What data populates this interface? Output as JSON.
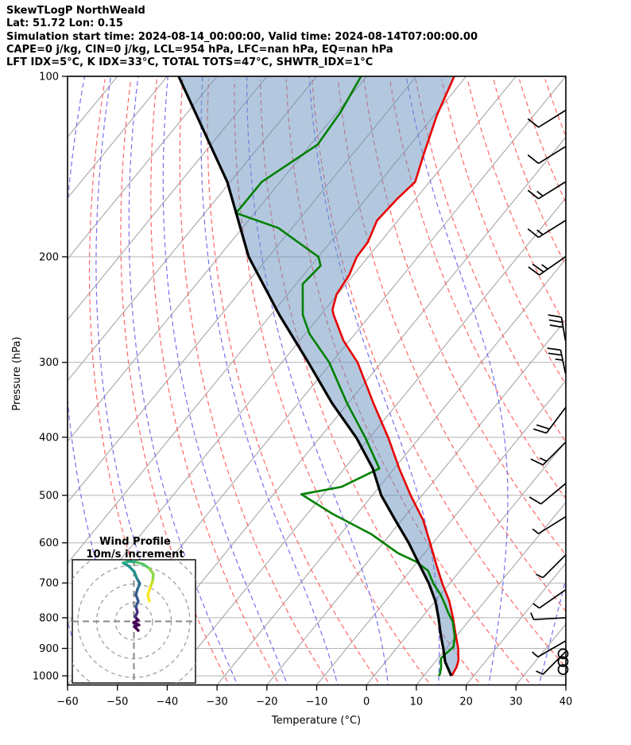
{
  "header": {
    "title": "SkewTLogP NorthWeald",
    "location": "Lat: 51.72   Lon: 0.15",
    "times": "Simulation start time: 2024-08-14_00:00:00, Valid time: 2024-08-14T07:00:00.00",
    "indices1": "CAPE=0 j/kg, CIN=0 j/kg, LCL=954 hPa, LFC=nan hPa, EQ=nan hPa",
    "indices2": "LFT IDX=5°C, K IDX=33°C, TOTAL TOTS=47°C, SHWTR_IDX=1°C"
  },
  "axes": {
    "xlabel": "Temperature (°C)",
    "ylabel": "Pressure (hPa)",
    "x_ticks": [
      -60,
      -50,
      -40,
      -30,
      -20,
      -10,
      0,
      10,
      20,
      30,
      40
    ],
    "y_ticks": [
      100,
      200,
      300,
      400,
      500,
      600,
      700,
      800,
      900,
      1000
    ]
  },
  "inset": {
    "title_line1": "Wind Profile",
    "title_line2": "10m/s increment"
  },
  "colors": {
    "temperature": "#e80000",
    "dewpoint": "#008000",
    "parcel": "#000000",
    "shade": "rgba(103,146,189,0.5)",
    "isotherm": "#a6a6a6",
    "dry_adiabat": "#ff6666",
    "moist_adiabat": "#7272f0",
    "gridline": "#b3b3b3",
    "barb": "#000000",
    "inset_ring": "#999999",
    "inset_cross": "#888888"
  },
  "chart_data": {
    "type": "line",
    "subtype": "skewt-logp",
    "title": "SkewTLogP NorthWeald",
    "xlabel": "Temperature (°C)",
    "ylabel": "Pressure (hPa)",
    "xlim": [
      -60,
      40
    ],
    "pressure_lim": [
      100,
      1050
    ],
    "grid": true,
    "temperature_C": [
      [
        100,
        -82.4
      ],
      [
        116,
        -79.5
      ],
      [
        135,
        -75.7
      ],
      [
        150,
        -72.9
      ],
      [
        160,
        -73.7
      ],
      [
        174,
        -74.2
      ],
      [
        189,
        -72.5
      ],
      [
        200,
        -72.3
      ],
      [
        215,
        -70.8
      ],
      [
        231,
        -70.2
      ],
      [
        245,
        -68.5
      ],
      [
        250,
        -67.4
      ],
      [
        276,
        -61.2
      ],
      [
        300,
        -54.8
      ],
      [
        351,
        -44.9
      ],
      [
        401,
        -36.2
      ],
      [
        451,
        -29.0
      ],
      [
        500,
        -22.3
      ],
      [
        550,
        -15.7
      ],
      [
        600,
        -10.6
      ],
      [
        651,
        -5.9
      ],
      [
        701,
        -1.5
      ],
      [
        750,
        2.8
      ],
      [
        800,
        6.3
      ],
      [
        850,
        9.4
      ],
      [
        900,
        12.4
      ],
      [
        942,
        14.4
      ],
      [
        966,
        15.1
      ],
      [
        1000,
        15.6
      ]
    ],
    "dewpoint_C": [
      [
        100,
        -101.1
      ],
      [
        115,
        -99.3
      ],
      [
        130,
        -98.6
      ],
      [
        150,
        -103.7
      ],
      [
        166,
        -103.7
      ],
      [
        169,
        -103.8
      ],
      [
        179,
        -92.8
      ],
      [
        200,
        -80.0
      ],
      [
        207,
        -78.1
      ],
      [
        222,
        -78.7
      ],
      [
        250,
        -73.6
      ],
      [
        269,
        -69.1
      ],
      [
        300,
        -60.5
      ],
      [
        351,
        -50.2
      ],
      [
        401,
        -40.8
      ],
      [
        451,
        -33.0
      ],
      [
        484,
        -37.6
      ],
      [
        498,
        -44.4
      ],
      [
        537,
        -34.9
      ],
      [
        580,
        -23.9
      ],
      [
        624,
        -15.4
      ],
      [
        645,
        -10.3
      ],
      [
        668,
        -6.4
      ],
      [
        701,
        -3.3
      ],
      [
        733,
        0.1
      ],
      [
        760,
        2.5
      ],
      [
        782,
        4.3
      ],
      [
        812,
        6.9
      ],
      [
        861,
        9.8
      ],
      [
        895,
        11.2
      ],
      [
        922,
        10.7
      ],
      [
        936,
        10.6
      ],
      [
        966,
        12.0
      ],
      [
        992,
        12.9
      ],
      [
        1000,
        13.0
      ]
    ],
    "parcel_C": [
      [
        100,
        -137.7
      ],
      [
        150,
        -110.6
      ],
      [
        200,
        -94.0
      ],
      [
        250,
        -78.3
      ],
      [
        300,
        -64.7
      ],
      [
        351,
        -53.2
      ],
      [
        401,
        -42.6
      ],
      [
        451,
        -34.3
      ],
      [
        500,
        -28.2
      ],
      [
        550,
        -21.3
      ],
      [
        600,
        -14.9
      ],
      [
        651,
        -9.3
      ],
      [
        701,
        -4.2
      ],
      [
        750,
        0.0
      ],
      [
        800,
        3.4
      ],
      [
        850,
        6.4
      ],
      [
        900,
        9.4
      ],
      [
        948,
        12.0
      ],
      [
        1000,
        15.5
      ]
    ],
    "isotherms_every_C": 10,
    "dry_adiabats_theta_C": [
      -40,
      -30,
      -20,
      -10,
      0,
      10,
      20,
      30,
      40,
      50,
      60,
      70,
      80,
      90,
      100,
      110,
      120,
      130,
      140,
      150,
      160,
      170,
      180,
      190,
      200
    ],
    "moist_adiabats_thetaw_C": [
      -55,
      -45,
      -35,
      -25,
      -15,
      -5,
      5,
      15,
      25,
      35
    ],
    "wind_barbs": [
      {
        "p": 114,
        "full": 1,
        "half": 0,
        "dir": [
          -0.85,
          0.53
        ],
        "side": 1
      },
      {
        "p": 131,
        "full": 1,
        "half": 0,
        "dir": [
          -0.85,
          0.53
        ],
        "side": 1
      },
      {
        "p": 150,
        "full": 1,
        "half": 1,
        "dir": [
          -0.85,
          0.53
        ],
        "side": 1
      },
      {
        "p": 174,
        "full": 1,
        "half": 1,
        "dir": [
          -0.85,
          0.53
        ],
        "side": 1
      },
      {
        "p": 200,
        "full": 2,
        "half": 1,
        "dir": [
          -0.82,
          0.57
        ],
        "side": 1
      },
      {
        "p": 276,
        "full": 3,
        "half": 0,
        "dir": [
          -0.17,
          -0.99
        ],
        "side": -1
      },
      {
        "p": 313,
        "full": 2,
        "half": 1,
        "dir": [
          -0.2,
          -0.98
        ],
        "side": -1
      },
      {
        "p": 357,
        "full": 2,
        "half": 0,
        "dir": [
          -0.6,
          0.8
        ],
        "side": 1
      },
      {
        "p": 408,
        "full": 1,
        "half": 1,
        "dir": [
          -0.71,
          0.71
        ],
        "side": 1
      },
      {
        "p": 478,
        "full": 1,
        "half": 0,
        "dir": [
          -0.77,
          0.64
        ],
        "side": 1
      },
      {
        "p": 543,
        "full": 0,
        "half": 1,
        "dir": [
          -0.85,
          0.53
        ],
        "side": 1
      },
      {
        "p": 629,
        "full": 0,
        "half": 1,
        "dir": [
          -0.71,
          0.71
        ],
        "side": 1
      },
      {
        "p": 719,
        "full": 0,
        "half": 1,
        "dir": [
          -0.82,
          0.57
        ],
        "side": 1
      },
      {
        "p": 800,
        "full": 0,
        "half": 1,
        "dir": [
          -1.0,
          0.06
        ],
        "side": 1
      },
      {
        "p": 875,
        "full": 0,
        "half": 1,
        "dir": [
          -0.87,
          0.5
        ],
        "side": 1
      },
      {
        "p": 912,
        "full": 0,
        "half": 1,
        "dir": [
          -0.71,
          0.71
        ],
        "side": 1
      }
    ],
    "calm_circles_p": [
      919,
      947,
      976
    ],
    "hodograph_rings_m_s": [
      10,
      20,
      30,
      40
    ],
    "hodograph_trace": [
      {
        "c": "#440154",
        "pts": [
          [
            174,
            793
          ],
          [
            169,
            788
          ],
          [
            175,
            786
          ],
          [
            168,
            783
          ],
          [
            174,
            780
          ],
          [
            170,
            776
          ]
        ]
      },
      {
        "c": "#46327e",
        "pts": [
          [
            170,
            776
          ],
          [
            173,
            770
          ],
          [
            171,
            763
          ]
        ]
      },
      {
        "c": "#365c8d",
        "pts": [
          [
            171,
            763
          ],
          [
            174,
            756
          ],
          [
            171,
            748
          ],
          [
            173,
            741
          ]
        ]
      },
      {
        "c": "#2e6e8e",
        "pts": [
          [
            173,
            741
          ],
          [
            176,
            734
          ],
          [
            172,
            727
          ]
        ]
      },
      {
        "c": "#21918c",
        "pts": [
          [
            172,
            727
          ],
          [
            169,
            719
          ],
          [
            162,
            712
          ],
          [
            155,
            708
          ]
        ]
      },
      {
        "c": "#27ad81",
        "pts": [
          [
            155,
            708
          ],
          [
            163,
            706
          ],
          [
            172,
            707
          ]
        ]
      },
      {
        "c": "#58c765",
        "pts": [
          [
            172,
            707
          ],
          [
            181,
            710
          ],
          [
            188,
            715
          ]
        ]
      },
      {
        "c": "#8ed645",
        "pts": [
          [
            188,
            715
          ],
          [
            193,
            722
          ],
          [
            192,
            731
          ]
        ]
      },
      {
        "c": "#c8e020",
        "pts": [
          [
            192,
            731
          ],
          [
            189,
            739
          ]
        ]
      },
      {
        "c": "#fde725",
        "pts": [
          [
            189,
            739
          ],
          [
            186,
            748
          ],
          [
            188,
            756
          ]
        ]
      }
    ]
  }
}
